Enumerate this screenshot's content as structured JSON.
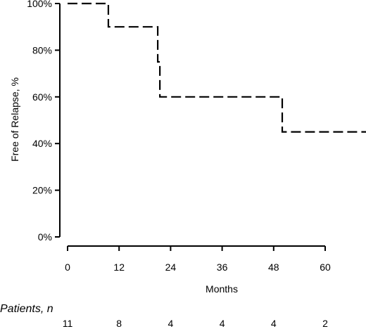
{
  "chart_data": {
    "type": "line",
    "title": "",
    "xlabel": "Months",
    "ylabel": "Free of Relapse, %",
    "xlim": [
      0,
      70
    ],
    "ylim": [
      0,
      100
    ],
    "x_ticks": [
      0,
      12,
      24,
      36,
      48,
      60
    ],
    "y_ticks": [
      {
        "value": 0,
        "label": "0%"
      },
      {
        "value": 20,
        "label": "20%"
      },
      {
        "value": 40,
        "label": "40%"
      },
      {
        "value": 60,
        "label": "60%"
      },
      {
        "value": 80,
        "label": "80%"
      },
      {
        "value": 100,
        "label": "100%"
      }
    ],
    "grid": false,
    "line_style": "dashed",
    "series": [
      {
        "step": true,
        "points": [
          {
            "x": 0,
            "y": 100
          },
          {
            "x": 9.5,
            "y": 90
          },
          {
            "x": 21,
            "y": 75
          },
          {
            "x": 21.5,
            "y": 60
          },
          {
            "x": 50,
            "y": 45
          },
          {
            "x": 70,
            "y": 45
          }
        ]
      }
    ],
    "risk_table": {
      "title": "Patients, n",
      "times": [
        0,
        12,
        24,
        36,
        48,
        60
      ],
      "counts": [
        "11",
        "8",
        "4",
        "4",
        "4",
        "2"
      ]
    }
  }
}
